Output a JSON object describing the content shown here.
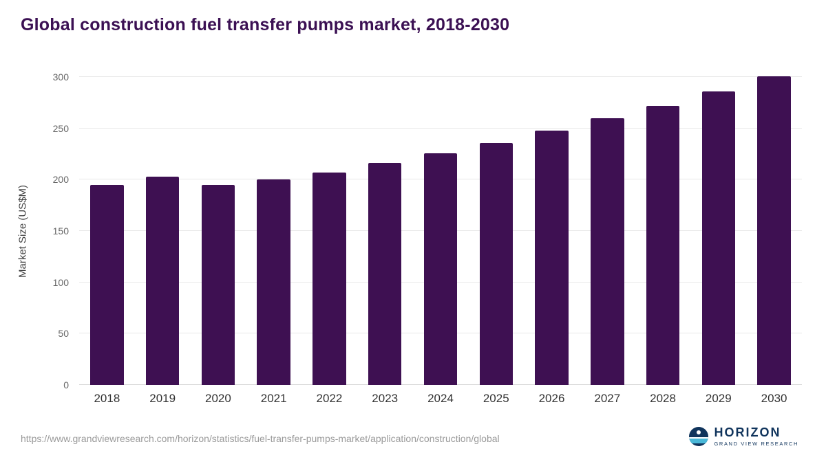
{
  "title": "Global construction fuel transfer pumps market, 2018-2030",
  "source_url": "https://www.grandviewresearch.com/horizon/statistics/fuel-transfer-pumps-market/application/construction/global",
  "branding": {
    "name": "HORIZON",
    "subtitle": "GRAND VIEW RESEARCH"
  },
  "colors": {
    "bar": "#3e1052",
    "title": "#3b1053",
    "grid": "#e8e8e8",
    "axis": "#d8d8d8",
    "tick_text": "#666666",
    "category_text": "#333333",
    "source_text": "#9a9a9a",
    "logo_navy": "#10345c",
    "logo_blue": "#4ab8d8"
  },
  "chart_data": {
    "type": "bar",
    "title": "Global construction fuel transfer pumps market, 2018-2030",
    "categories": [
      "2018",
      "2019",
      "2020",
      "2021",
      "2022",
      "2023",
      "2024",
      "2025",
      "2026",
      "2027",
      "2028",
      "2029",
      "2030"
    ],
    "values": [
      195,
      203,
      195,
      200,
      207,
      216,
      226,
      236,
      248,
      260,
      272,
      286,
      301
    ],
    "xlabel": "",
    "ylabel": "Market Size (US$M)",
    "ylim": [
      0,
      300
    ],
    "yticks": [
      0,
      50,
      100,
      150,
      200,
      250,
      300
    ],
    "grid": true,
    "legend": "none"
  }
}
